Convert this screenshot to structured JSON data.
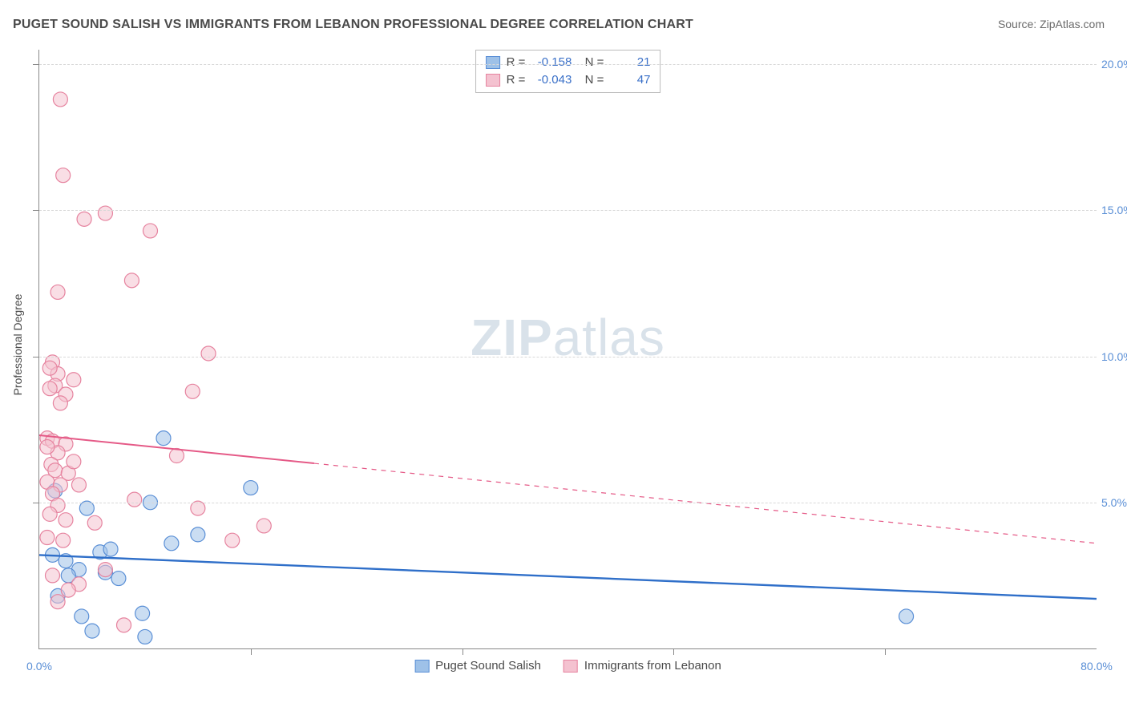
{
  "title": "PUGET SOUND SALISH VS IMMIGRANTS FROM LEBANON PROFESSIONAL DEGREE CORRELATION CHART",
  "source": "Source: ZipAtlas.com",
  "watermark_bold": "ZIP",
  "watermark_light": "atlas",
  "chart": {
    "type": "scatter",
    "x_min": 0,
    "x_max": 80,
    "y_min": 0,
    "y_max": 20.5,
    "background_color": "#ffffff",
    "grid_color": "#d8d8d8",
    "axis_color": "#888888",
    "y_axis_title": "Professional Degree",
    "x_axis_min_label": "0.0%",
    "x_axis_max_label": "80.0%",
    "y_ticks": [
      {
        "v": 5,
        "label": "5.0%"
      },
      {
        "v": 10,
        "label": "10.0%"
      },
      {
        "v": 15,
        "label": "15.0%"
      },
      {
        "v": 20,
        "label": "20.0%"
      }
    ],
    "x_tick_count": 5,
    "marker_radius": 9,
    "marker_opacity": 0.55,
    "stats": [
      {
        "series": 0,
        "R": "-0.158",
        "N": "21"
      },
      {
        "series": 1,
        "R": "-0.043",
        "N": "47"
      }
    ],
    "series": [
      {
        "name": "Puget Sound Salish",
        "fill": "#9ec1e8",
        "stroke": "#5a8fd6",
        "line_color": "#2f6fc9",
        "line_width": 2.4,
        "line": {
          "x1": 0,
          "y1": 3.2,
          "x2": 80,
          "y2": 1.7,
          "solid_frac": 1.0
        },
        "points": [
          [
            1.2,
            5.4
          ],
          [
            9.4,
            7.2
          ],
          [
            1.0,
            3.2
          ],
          [
            2.0,
            3.0
          ],
          [
            3.0,
            2.7
          ],
          [
            5.0,
            2.6
          ],
          [
            6.0,
            2.4
          ],
          [
            8.4,
            5.0
          ],
          [
            12.0,
            3.9
          ],
          [
            10.0,
            3.6
          ],
          [
            16.0,
            5.5
          ],
          [
            7.8,
            1.2
          ],
          [
            4.0,
            0.6
          ],
          [
            8.0,
            0.4
          ],
          [
            3.6,
            4.8
          ],
          [
            1.4,
            1.8
          ],
          [
            3.2,
            1.1
          ],
          [
            65.6,
            1.1
          ],
          [
            4.6,
            3.3
          ],
          [
            2.2,
            2.5
          ],
          [
            5.4,
            3.4
          ]
        ]
      },
      {
        "name": "Immigrants from Lebanon",
        "fill": "#f4c2d0",
        "stroke": "#e6839f",
        "line_color": "#e55a87",
        "line_width": 2.0,
        "line": {
          "x1": 0,
          "y1": 7.3,
          "x2": 80,
          "y2": 3.6,
          "solid_frac": 0.26
        },
        "points": [
          [
            1.6,
            18.8
          ],
          [
            1.8,
            16.2
          ],
          [
            3.4,
            14.7
          ],
          [
            5.0,
            14.9
          ],
          [
            8.4,
            14.3
          ],
          [
            1.4,
            12.2
          ],
          [
            7.0,
            12.6
          ],
          [
            1.0,
            9.8
          ],
          [
            1.4,
            9.4
          ],
          [
            1.2,
            9.0
          ],
          [
            2.0,
            8.7
          ],
          [
            1.6,
            8.4
          ],
          [
            0.8,
            8.9
          ],
          [
            11.6,
            8.8
          ],
          [
            12.8,
            10.1
          ],
          [
            0.6,
            7.2
          ],
          [
            1.0,
            7.1
          ],
          [
            2.0,
            7.0
          ],
          [
            1.4,
            6.7
          ],
          [
            0.9,
            6.3
          ],
          [
            1.2,
            6.1
          ],
          [
            2.2,
            6.0
          ],
          [
            0.6,
            5.7
          ],
          [
            1.6,
            5.6
          ],
          [
            1.0,
            5.3
          ],
          [
            3.0,
            5.6
          ],
          [
            7.2,
            5.1
          ],
          [
            12.0,
            4.8
          ],
          [
            1.4,
            4.9
          ],
          [
            0.8,
            4.6
          ],
          [
            2.0,
            4.4
          ],
          [
            4.2,
            4.3
          ],
          [
            14.6,
            3.7
          ],
          [
            5.0,
            2.7
          ],
          [
            17.0,
            4.2
          ],
          [
            0.6,
            3.8
          ],
          [
            1.8,
            3.7
          ],
          [
            1.0,
            2.5
          ],
          [
            3.0,
            2.2
          ],
          [
            2.2,
            2.0
          ],
          [
            1.4,
            1.6
          ],
          [
            6.4,
            0.8
          ],
          [
            0.8,
            9.6
          ],
          [
            10.4,
            6.6
          ],
          [
            2.6,
            9.2
          ],
          [
            2.6,
            6.4
          ],
          [
            0.6,
            6.9
          ]
        ]
      }
    ]
  },
  "colors": {
    "title": "#4a4a4a",
    "value": "#3a70c8"
  }
}
